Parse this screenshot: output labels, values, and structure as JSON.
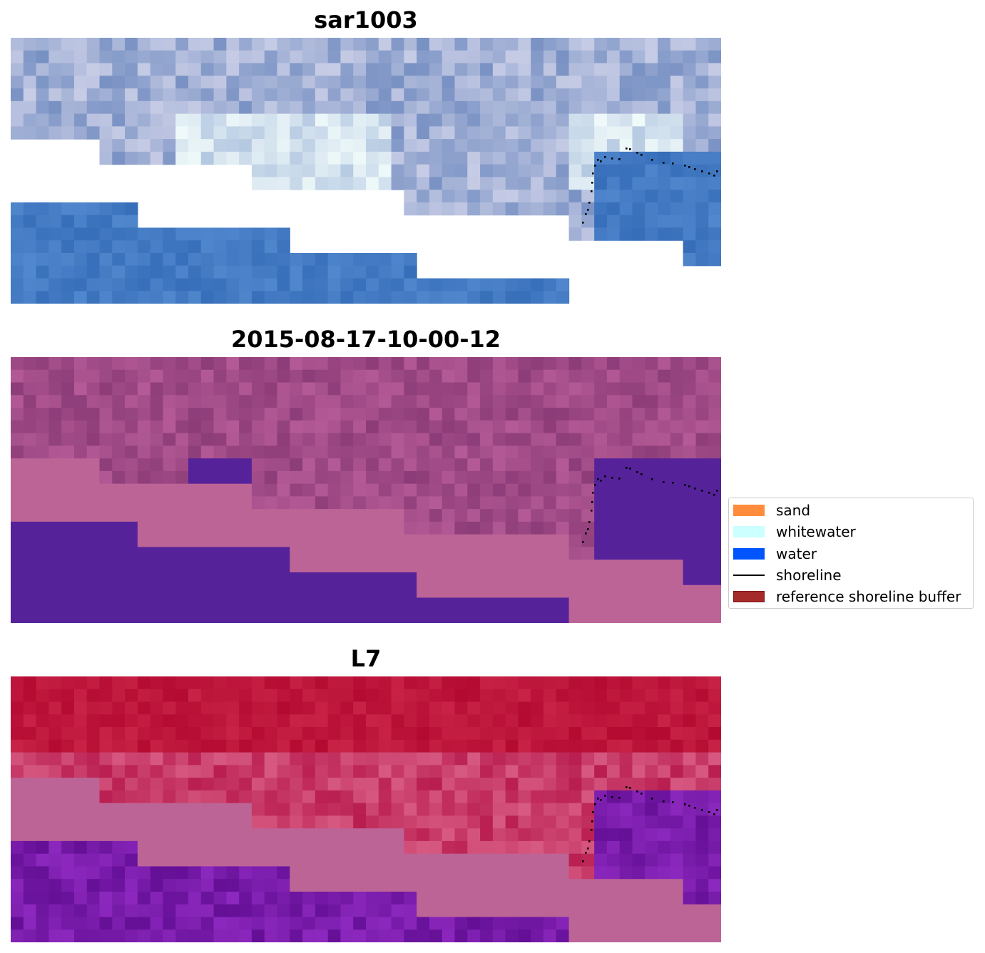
{
  "panels": [
    {
      "title": "sar1003",
      "style": "rgb"
    },
    {
      "title": "2015-08-17-10-00-12",
      "style": "classified"
    },
    {
      "title": "L7",
      "style": "index"
    }
  ],
  "legend": {
    "items": [
      {
        "label": "sand",
        "color": "#ff8c3c",
        "kind": "patch"
      },
      {
        "label": "whitewater",
        "color": "#ccffff",
        "kind": "patch"
      },
      {
        "label": "water",
        "color": "#0055ff",
        "kind": "patch"
      },
      {
        "label": "shoreline",
        "color": "#000000",
        "kind": "line"
      },
      {
        "label": "reference shoreline buffer",
        "color": "#a52a2a",
        "kind": "patch",
        "edge": "#7a1a1a"
      }
    ]
  },
  "colors": {
    "nodata_pink": "#bc6496",
    "class_water": "#55229a",
    "shoreline_dots": "#000000"
  }
}
